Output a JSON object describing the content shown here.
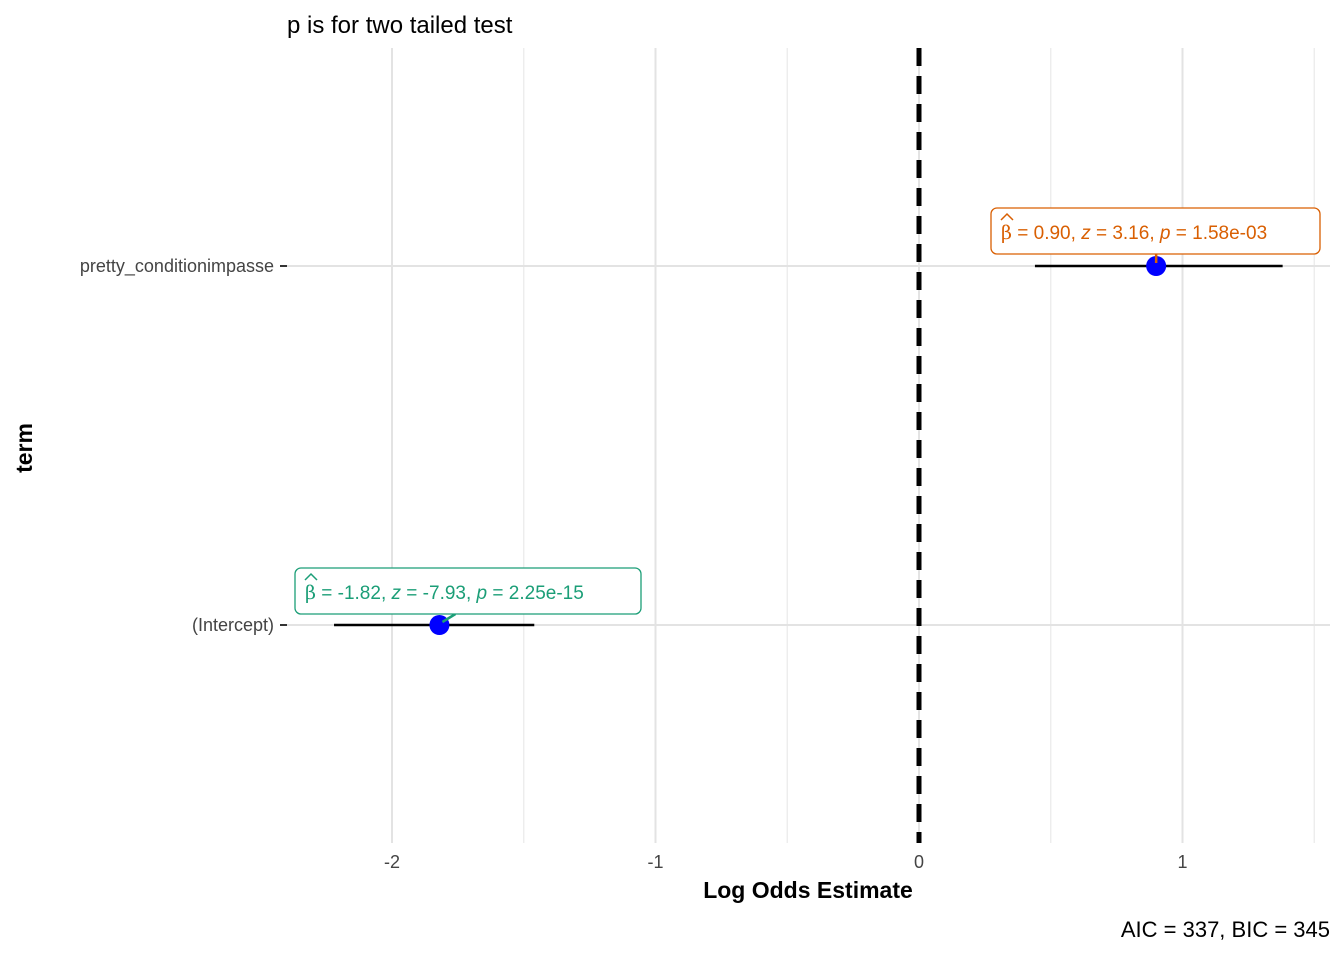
{
  "chart_data": {
    "type": "scatter",
    "subtitle": "p is for two tailed test",
    "xlabel": "Log Odds Estimate",
    "ylabel": "term",
    "caption": "AIC = 337, BIC = 345",
    "xlim": [
      -2.5,
      1.6
    ],
    "x_ticks": [
      -2,
      -1,
      0,
      1
    ],
    "x_tick_labels": [
      "-2",
      "-1",
      "0",
      "1"
    ],
    "x_minor_ticks": [
      -1.5,
      -0.5,
      0.5,
      1.5
    ],
    "reference_line": 0,
    "grid": true,
    "terms": [
      "(Intercept)",
      "pretty_conditionimpasse"
    ],
    "points": [
      {
        "term": "(Intercept)",
        "estimate": -1.82,
        "conf_low": -2.22,
        "conf_high": -1.46,
        "beta_text": "β",
        "label_parts": {
          "eq1": " = -1.82, ",
          "z": "z",
          "eq2": " = -7.93, ",
          "p": "p",
          "eq3": " = 2.25e-15"
        },
        "color": "#1b9e77"
      },
      {
        "term": "pretty_conditionimpasse",
        "estimate": 0.9,
        "conf_low": 0.44,
        "conf_high": 1.38,
        "beta_text": "β",
        "label_parts": {
          "eq1": " = 0.90, ",
          "z": "z",
          "eq2": " = 3.16, ",
          "p": "p",
          "eq3": " = 1.58e-03"
        },
        "color": "#d95f02"
      }
    ],
    "point_color": "#0000ff"
  }
}
